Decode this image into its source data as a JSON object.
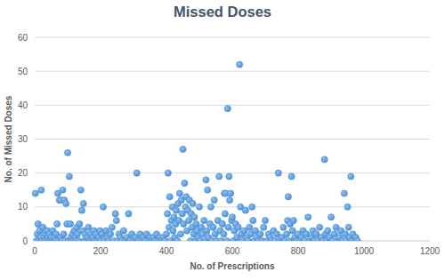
{
  "chart_data": {
    "type": "scatter",
    "title": "Missed Doses",
    "x_label": "No. of Prescriptions",
    "y_label": "No. of Missed Doses",
    "color": "#4a8fd6",
    "marker": "circle",
    "grid": true,
    "xlim": [
      0,
      1200
    ],
    "xticks": [
      0,
      200,
      400,
      600,
      800,
      1000,
      1200
    ],
    "ylim": [
      0,
      60
    ],
    "yticks": [
      0,
      10,
      20,
      30,
      40,
      50,
      60
    ],
    "x": [
      2,
      5,
      8,
      10,
      12,
      15,
      18,
      20,
      22,
      25,
      28,
      30,
      33,
      35,
      38,
      40,
      43,
      45,
      48,
      50,
      53,
      55,
      58,
      60,
      63,
      65,
      68,
      70,
      72,
      75,
      78,
      80,
      82,
      85,
      88,
      90,
      92,
      95,
      98,
      100,
      103,
      105,
      108,
      110,
      113,
      115,
      118,
      120,
      123,
      125,
      128,
      130,
      133,
      136,
      140,
      143,
      146,
      148,
      150,
      153,
      156,
      160,
      163,
      166,
      170,
      173,
      176,
      180,
      183,
      186,
      190,
      194,
      198,
      200,
      204,
      208,
      212,
      216,
      220,
      225,
      230,
      235,
      240,
      245,
      248,
      252,
      256,
      260,
      265,
      270,
      275,
      280,
      285,
      290,
      295,
      300,
      305,
      310,
      315,
      320,
      325,
      330,
      335,
      340,
      345,
      350,
      355,
      360,
      365,
      370,
      375,
      380,
      385,
      390,
      395,
      400,
      403,
      405,
      408,
      410,
      412,
      415,
      418,
      420,
      423,
      425,
      428,
      430,
      433,
      435,
      438,
      440,
      443,
      445,
      448,
      450,
      452,
      455,
      458,
      460,
      462,
      465,
      468,
      470,
      473,
      475,
      478,
      480,
      483,
      485,
      488,
      490,
      493,
      496,
      500,
      503,
      506,
      510,
      514,
      518,
      520,
      523,
      525,
      528,
      532,
      535,
      538,
      542,
      545,
      548,
      552,
      556,
      560,
      563,
      566,
      570,
      574,
      576,
      578,
      580,
      583,
      586,
      588,
      590,
      592,
      595,
      598,
      600,
      603,
      606,
      610,
      614,
      618,
      622,
      625,
      628,
      632,
      636,
      640,
      644,
      648,
      652,
      656,
      660,
      663,
      666,
      670,
      675,
      680,
      685,
      690,
      695,
      700,
      705,
      710,
      715,
      720,
      725,
      730,
      735,
      740,
      745,
      750,
      755,
      760,
      765,
      768,
      770,
      773,
      776,
      780,
      783,
      786,
      790,
      795,
      800,
      805,
      810,
      815,
      820,
      825,
      830,
      835,
      840,
      845,
      850,
      855,
      860,
      865,
      870,
      875,
      880,
      883,
      886,
      890,
      895,
      900,
      905,
      910,
      915,
      920,
      925,
      930,
      935,
      940,
      943,
      946,
      950,
      953,
      956,
      960,
      963,
      966,
      970,
      975,
      980
    ],
    "values": [
      14,
      0,
      2,
      5,
      0,
      3,
      1,
      15,
      0,
      4,
      1,
      0,
      2,
      0,
      3,
      1,
      0,
      2,
      0,
      1,
      0,
      3,
      0,
      1,
      0,
      2,
      5,
      14,
      0,
      12,
      1,
      12,
      0,
      15,
      2,
      12,
      0,
      11,
      5,
      26,
      0,
      19,
      5,
      1,
      0,
      2,
      0,
      3,
      1,
      0,
      4,
      2,
      0,
      5,
      15,
      9,
      3,
      11,
      0,
      2,
      0,
      1,
      4,
      0,
      2,
      0,
      1,
      3,
      0,
      2,
      0,
      1,
      3,
      0,
      2,
      10,
      0,
      3,
      1,
      0,
      2,
      4,
      0,
      8,
      6,
      0,
      2,
      1,
      0,
      3,
      0,
      1,
      8,
      0,
      2,
      0,
      1,
      20,
      0,
      2,
      0,
      1,
      0,
      2,
      0,
      1,
      0,
      1,
      0,
      2,
      0,
      1,
      0,
      1,
      0,
      2,
      8,
      20,
      4,
      13,
      0,
      6,
      10,
      3,
      7,
      1,
      5,
      9,
      0,
      11,
      6,
      14,
      2,
      12,
      8,
      27,
      5,
      17,
      10,
      13,
      3,
      9,
      6,
      12,
      0,
      8,
      4,
      11,
      2,
      7,
      0,
      5,
      3,
      1,
      10,
      0,
      4,
      2,
      6,
      0,
      18,
      3,
      15,
      1,
      5,
      10,
      0,
      4,
      12,
      2,
      0,
      6,
      19,
      3,
      0,
      5,
      2,
      14,
      8,
      14,
      0,
      39,
      4,
      19,
      12,
      14,
      6,
      7,
      0,
      3,
      5,
      1,
      4,
      52,
      10,
      2,
      0,
      3,
      9,
      1,
      0,
      4,
      2,
      10,
      6,
      0,
      3,
      1,
      0,
      2,
      0,
      4,
      6,
      0,
      2,
      1,
      0,
      3,
      0,
      2,
      20,
      0,
      1,
      4,
      0,
      2,
      6,
      13,
      0,
      5,
      19,
      3,
      6,
      1,
      0,
      2,
      0,
      1,
      3,
      0,
      2,
      7,
      0,
      1,
      3,
      0,
      2,
      0,
      4,
      1,
      0,
      24,
      2,
      0,
      3,
      1,
      7,
      0,
      2,
      4,
      0,
      1,
      3,
      0,
      14,
      2,
      0,
      10,
      4,
      1,
      19,
      0,
      2,
      0,
      1,
      0
    ]
  }
}
